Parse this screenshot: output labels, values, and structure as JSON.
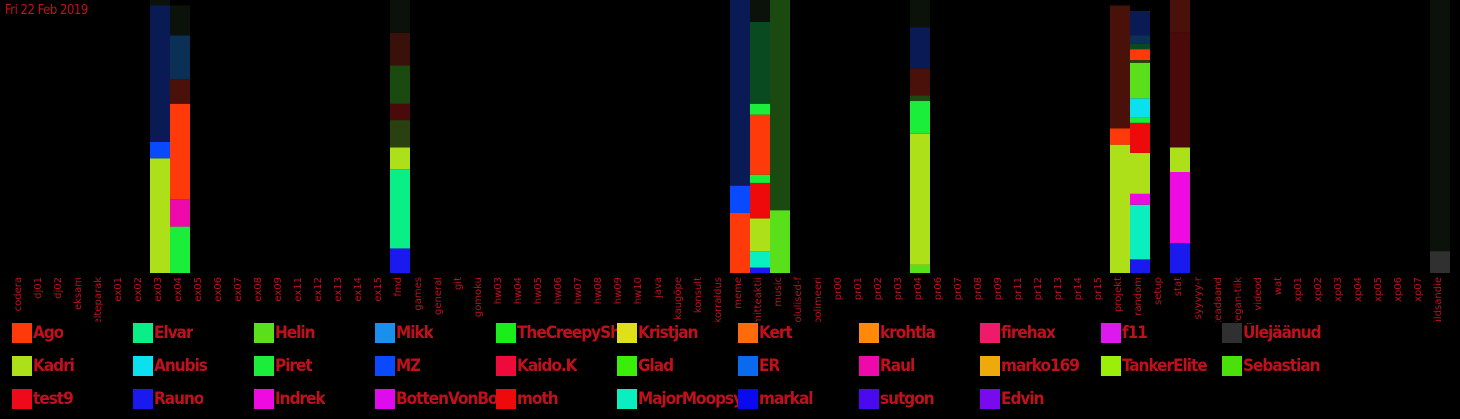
{
  "date_label": "Fri 22 Feb 2019",
  "chart_data": {
    "type": "bar",
    "stacked": true,
    "ylim": [
      0,
      100
    ],
    "categories": [
      "codera",
      "dj01",
      "dj02",
      "eksam",
      "elteparak",
      "ex01",
      "ex02",
      "ex03",
      "ex04",
      "ex05",
      "ex06",
      "ex07",
      "ex08",
      "ex09",
      "ex11",
      "ex12",
      "ex13",
      "ex14",
      "ex15",
      "fmd",
      "games",
      "general",
      "git",
      "gomoku",
      "hw03",
      "hw04",
      "hw05",
      "hw06",
      "hw07",
      "hw08",
      "hw09",
      "hw10",
      "java",
      "kaugõpe",
      "konsult",
      "korraldus",
      "meme",
      "mitteaktiiv",
      "music",
      "olulised-fi",
      "polimeeri",
      "pr00",
      "pr01",
      "pr02",
      "pr03",
      "pr04",
      "pr06",
      "pr07",
      "pr08",
      "pr09",
      "pr11",
      "pr12",
      "pr13",
      "pr14",
      "pr15",
      "projekt",
      "random",
      "setup",
      "stat",
      "syyvyy-r",
      "teadaand",
      "vegan-tiik",
      "videod",
      "wat",
      "xp01",
      "xp02",
      "xp03",
      "xp04",
      "xp05",
      "xp06",
      "xp07",
      "üldsandie"
    ],
    "segments": {
      "ex03": [
        {
          "user": "Kadri",
          "value": 42
        },
        {
          "user": "MZ",
          "value": 6
        },
        {
          "user": "#0a1a55",
          "value": 50
        },
        {
          "user": "#0a120a",
          "value": 2
        }
      ],
      "ex04": [
        {
          "user": "Piret",
          "value": 17
        },
        {
          "user": "Raul",
          "value": 10
        },
        {
          "user": "Ago",
          "value": 35
        },
        {
          "user": "#4a100a",
          "value": 9
        },
        {
          "user": "#0a3055",
          "value": 16
        },
        {
          "user": "#0a120a",
          "value": 11
        }
      ],
      "fmd": [
        {
          "user": "Rauno",
          "value": 9
        },
        {
          "user": "Elvar",
          "value": 29
        },
        {
          "user": "Kadri",
          "value": 8
        },
        {
          "user": "#2a4010",
          "value": 10
        },
        {
          "user": "#4a0a0a",
          "value": 6
        },
        {
          "user": "#1a4a10",
          "value": 14
        },
        {
          "user": "#3a100a",
          "value": 12
        },
        {
          "user": "#0a120a",
          "value": 12
        }
      ],
      "meme": [
        {
          "user": "Ago",
          "value": 22
        },
        {
          "user": "MZ",
          "value": 10
        },
        {
          "user": "#0a1a55",
          "value": 68
        }
      ],
      "mitteaktiiv": [
        {
          "user": "Rauno",
          "value": 2
        },
        {
          "user": "MajorMoopsy",
          "value": 6
        },
        {
          "user": "Kadri",
          "value": 12
        },
        {
          "user": "moth",
          "value": 13
        },
        {
          "user": "Piret",
          "value": 3
        },
        {
          "user": "Ago",
          "value": 22
        },
        {
          "user": "Piret",
          "value": 4
        },
        {
          "user": "#0a4a20",
          "value": 30
        },
        {
          "user": "#0a120a",
          "value": 8
        }
      ],
      "music": [
        {
          "user": "Helin",
          "value": 23
        },
        {
          "user": "#1a4a10",
          "value": 77
        }
      ],
      "pr04": [
        {
          "user": "Helin",
          "value": 3
        },
        {
          "user": "Kadri",
          "value": 48
        },
        {
          "user": "Piret",
          "value": 12
        },
        {
          "user": "#1a4a10",
          "value": 2
        },
        {
          "user": "#4a100a",
          "value": 10
        },
        {
          "user": "#0a1a55",
          "value": 15
        },
        {
          "user": "#0a120a",
          "value": 10
        }
      ],
      "projekt": [
        {
          "user": "Kadri",
          "value": 47
        },
        {
          "user": "Ago",
          "value": 6
        },
        {
          "user": "#4a100a",
          "value": 45
        }
      ],
      "random": [
        {
          "user": "Rauno",
          "value": 5
        },
        {
          "user": "MajorMoopsy",
          "value": 20
        },
        {
          "user": "Indrek",
          "value": 4
        },
        {
          "user": "Kadri",
          "value": 15
        },
        {
          "user": "moth",
          "value": 11
        },
        {
          "user": "Piret",
          "value": 2
        },
        {
          "user": "Anubis",
          "value": 7
        },
        {
          "user": "Helin",
          "value": 13
        },
        {
          "user": "#2a4010",
          "value": 1
        },
        {
          "user": "Ago",
          "value": 4
        },
        {
          "user": "#0a4a20",
          "value": 2
        },
        {
          "user": "#0a3055",
          "value": 3
        },
        {
          "user": "#0a1a55",
          "value": 9
        }
      ],
      "stat": [
        {
          "user": "Rauno",
          "value": 11
        },
        {
          "user": "Indrek",
          "value": 26
        },
        {
          "user": "Kadri",
          "value": 9
        },
        {
          "user": "#4a0a0a",
          "value": 42
        },
        {
          "user": "#4a100a",
          "value": 12
        }
      ],
      "üldsandie": [
        {
          "user": "Ülejäänud",
          "value": 8
        },
        {
          "user": "#0a120a",
          "value": 92
        }
      ]
    }
  },
  "legend": [
    {
      "name": "Ago",
      "color": "#ff3a0a"
    },
    {
      "name": "Elvar",
      "color": "#0aee88"
    },
    {
      "name": "Helin",
      "color": "#5ae01a"
    },
    {
      "name": "Mikk",
      "color": "#1a90ee"
    },
    {
      "name": "TheCreepySh",
      "color": "#1aee1a"
    },
    {
      "name": "Kristjan",
      "color": "#e0e01a"
    },
    {
      "name": "Kert",
      "color": "#ff6a0a"
    },
    {
      "name": "krohtla",
      "color": "#ff8a0a"
    },
    {
      "name": "firehax",
      "color": "#ee1a6a"
    },
    {
      "name": "f11",
      "color": "#dd1aee"
    },
    {
      "name": "Ülejäänud",
      "color": "#303030"
    },
    {
      "name": "Kadri",
      "color": "#aee01a"
    },
    {
      "name": "Anubis",
      "color": "#0ae0ee"
    },
    {
      "name": "Piret",
      "color": "#1aee3a"
    },
    {
      "name": "MZ",
      "color": "#0a4aff"
    },
    {
      "name": "Kaido.K",
      "color": "#ee0a3a"
    },
    {
      "name": "Glad",
      "color": "#3aee0a"
    },
    {
      "name": "ER",
      "color": "#0a6aee"
    },
    {
      "name": "Raul",
      "color": "#ee0aaa"
    },
    {
      "name": "marko169",
      "color": "#eeaa0a"
    },
    {
      "name": "TankerElite",
      "color": "#9aee0a"
    },
    {
      "name": "Sebastian",
      "color": "#4ae00a"
    },
    {
      "name": "test9",
      "color": "#ee0a1a"
    },
    {
      "name": "Rauno",
      "color": "#1a1aee"
    },
    {
      "name": "Indrek",
      "color": "#ee0ae0"
    },
    {
      "name": "BottenVonBot",
      "color": "#e00aee"
    },
    {
      "name": "moth",
      "color": "#ee0a0a"
    },
    {
      "name": "MajorMoopsy",
      "color": "#0aeec0"
    },
    {
      "name": "markal",
      "color": "#0a0aee"
    },
    {
      "name": "sutgon",
      "color": "#4a0aee"
    },
    {
      "name": "Edvin",
      "color": "#7a0aee"
    }
  ]
}
